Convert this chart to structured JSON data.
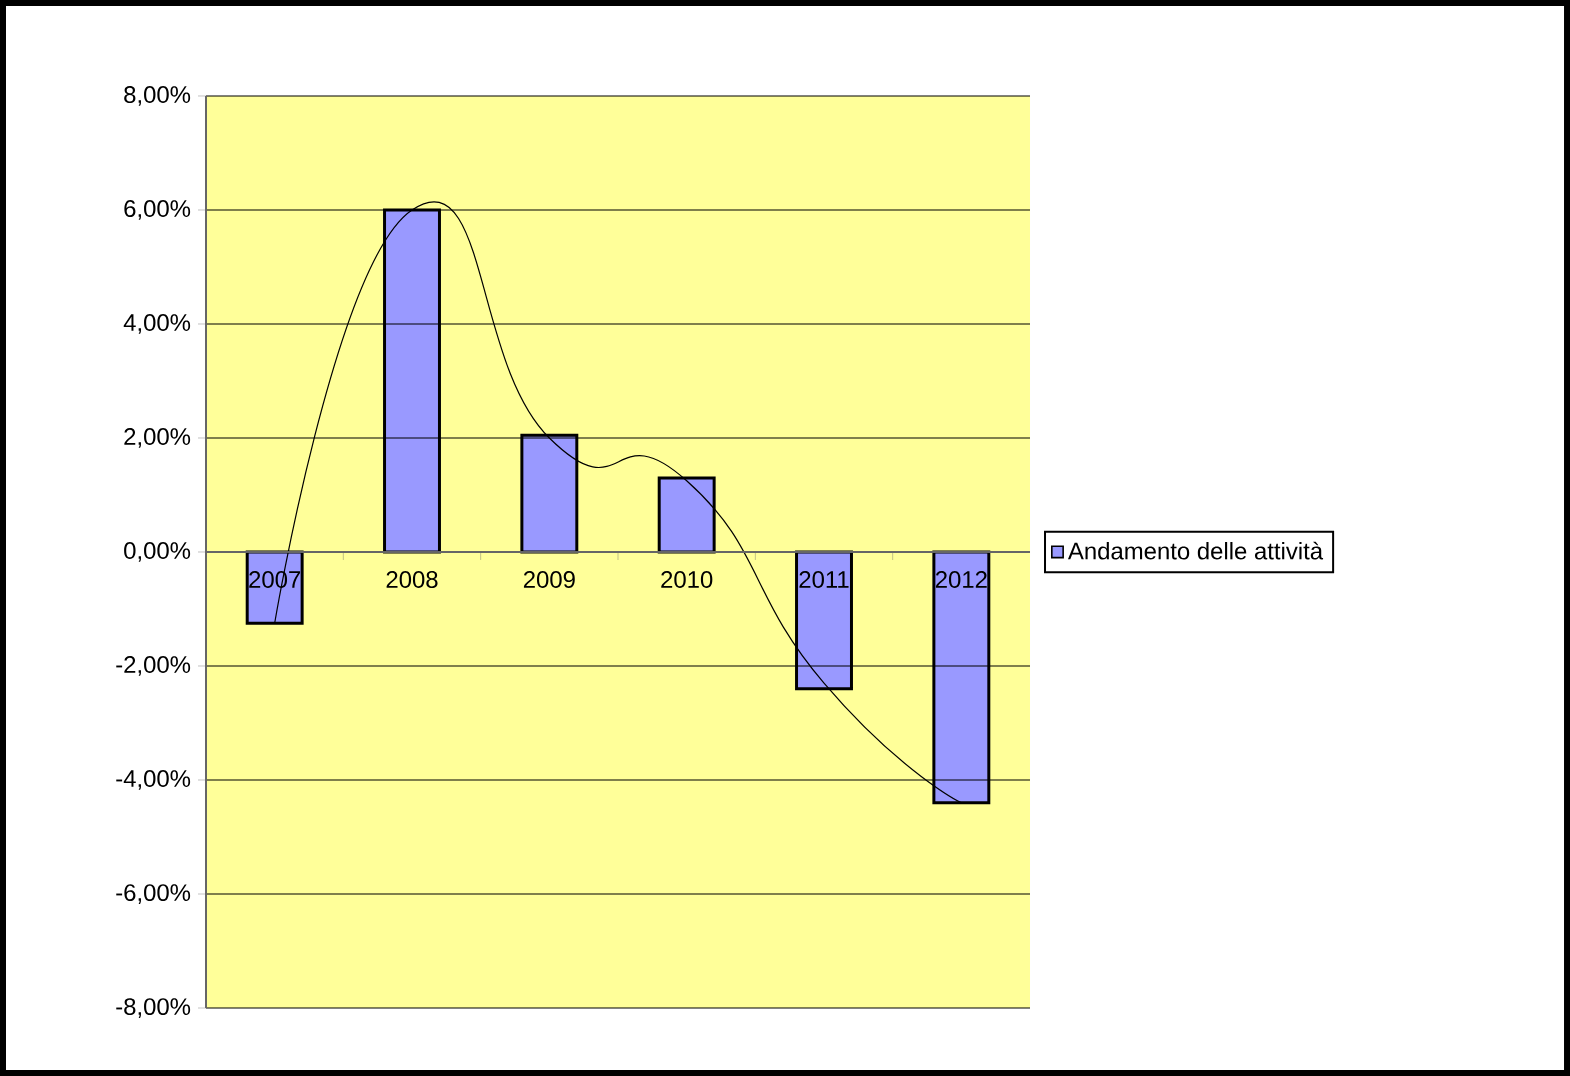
{
  "chart_data": {
    "type": "bar",
    "categories": [
      "2007",
      "2008",
      "2009",
      "2010",
      "2011",
      "2012"
    ],
    "series": [
      {
        "name": "Andamento delle attività",
        "color": "#9999ff",
        "values": [
          -1.25,
          6.0,
          2.05,
          1.3,
          -2.4,
          -4.4
        ]
      },
      {
        "type": "line",
        "color": "#000000",
        "values": [
          -1.25,
          6.0,
          2.0,
          1.25,
          -2.3,
          -4.4
        ]
      }
    ],
    "ylim": [
      -8,
      8
    ],
    "yticks": [
      {
        "value": -8,
        "label": "-8,00%"
      },
      {
        "value": -6,
        "label": "-6,00%"
      },
      {
        "value": -4,
        "label": "-4,00%"
      },
      {
        "value": -2,
        "label": "-2,00%"
      },
      {
        "value": 0,
        "label": "0,00%"
      },
      {
        "value": 2,
        "label": "2,00%"
      },
      {
        "value": 4,
        "label": "4,00%"
      },
      {
        "value": 6,
        "label": "6,00%"
      },
      {
        "value": 8,
        "label": "8,00%"
      }
    ],
    "grid": "y",
    "legend": "right",
    "marker": "none",
    "line_style": "solid"
  }
}
